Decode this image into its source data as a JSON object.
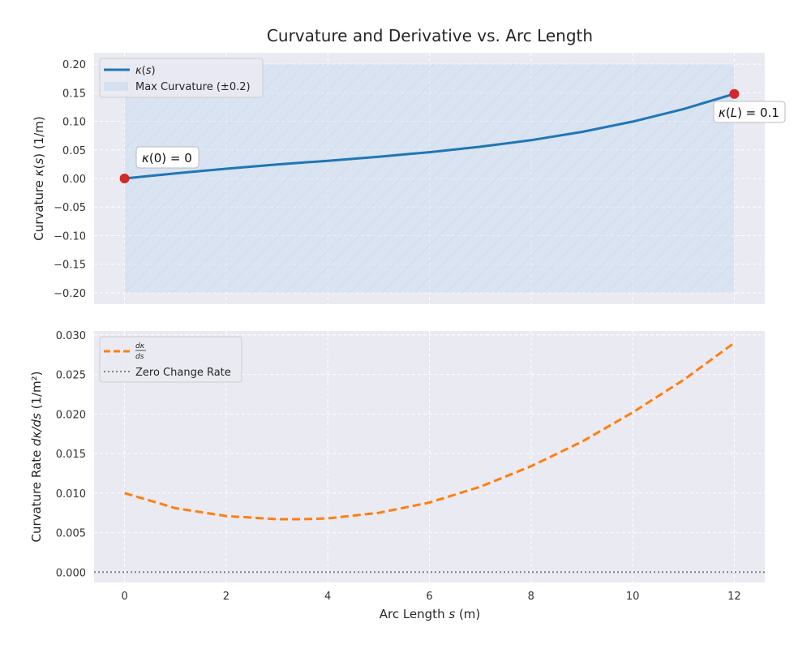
{
  "figure": {
    "title": "Curvature and Derivative vs. Arc Length"
  },
  "chart_data": [
    {
      "type": "line",
      "ylabel": "Curvature κ(s) (1/m)",
      "xlim": [
        -0.6,
        12.6
      ],
      "ylim": [
        -0.22,
        0.22
      ],
      "y_ticks": [
        "0.20",
        "0.15",
        "0.10",
        "0.05",
        "0.00",
        "−0.05",
        "−0.10",
        "−0.15",
        "−0.20"
      ],
      "y_tick_values": [
        0.2,
        0.15,
        0.1,
        0.05,
        0.0,
        -0.05,
        -0.1,
        -0.15,
        -0.2
      ],
      "x_tick_values": [
        0,
        2,
        4,
        6,
        8,
        10,
        12
      ],
      "grid": true,
      "legend_position": "top-left",
      "series": [
        {
          "name": "κ(s)",
          "color": "#1f77b4",
          "style": "solid",
          "x": [
            0,
            1,
            2,
            3,
            4,
            5,
            6,
            7,
            8,
            9,
            10,
            11,
            12
          ],
          "y": [
            0.0,
            0.0089,
            0.0171,
            0.0245,
            0.031,
            0.038,
            0.046,
            0.0555,
            0.067,
            0.0815,
            0.0995,
            0.1215,
            0.148
          ]
        }
      ],
      "band": {
        "name": "Max Curvature (±0.2)",
        "x_range": [
          0,
          12
        ],
        "y_range": [
          -0.2,
          0.2
        ],
        "color": "#c6dbef"
      },
      "markers": [
        {
          "x": 0,
          "y": 0.0,
          "color": "#d62728"
        },
        {
          "x": 12,
          "y": 0.148,
          "color": "#d62728"
        }
      ],
      "annotations": [
        {
          "text": "κ(0) = 0",
          "x": 0.35,
          "y": 0.037
        },
        {
          "text": "κ(L) = 0.1",
          "x": 11.6,
          "y": 0.115
        }
      ]
    },
    {
      "type": "line",
      "xlabel": "Arc Length s (m)",
      "ylabel": "Curvature Rate dκ/ds (1/m²)",
      "xlim": [
        -0.6,
        12.6
      ],
      "ylim": [
        -0.0013,
        0.0305
      ],
      "y_ticks": [
        "0.030",
        "0.025",
        "0.020",
        "0.015",
        "0.010",
        "0.005",
        "0.000"
      ],
      "y_tick_values": [
        0.03,
        0.025,
        0.02,
        0.015,
        0.01,
        0.005,
        0.0
      ],
      "x_ticks": [
        "0",
        "2",
        "4",
        "6",
        "8",
        "10",
        "12"
      ],
      "x_tick_values": [
        0,
        2,
        4,
        6,
        8,
        10,
        12
      ],
      "grid": true,
      "legend_position": "top-left",
      "series": [
        {
          "name": "dκ/ds",
          "color": "#ff7f0e",
          "style": "dashed",
          "x": [
            0,
            1,
            2,
            3,
            3.5,
            4,
            5,
            6,
            7,
            8,
            9,
            10,
            11,
            12
          ],
          "y": [
            0.01,
            0.0081,
            0.0071,
            0.0067,
            0.0067,
            0.0068,
            0.0075,
            0.0088,
            0.0108,
            0.0134,
            0.0165,
            0.0202,
            0.0243,
            0.029
          ]
        },
        {
          "name": "Zero Change Rate",
          "color": "#808080",
          "style": "dotted",
          "x": [
            -0.6,
            12.6
          ],
          "y": [
            0.0,
            0.0
          ]
        }
      ]
    }
  ]
}
